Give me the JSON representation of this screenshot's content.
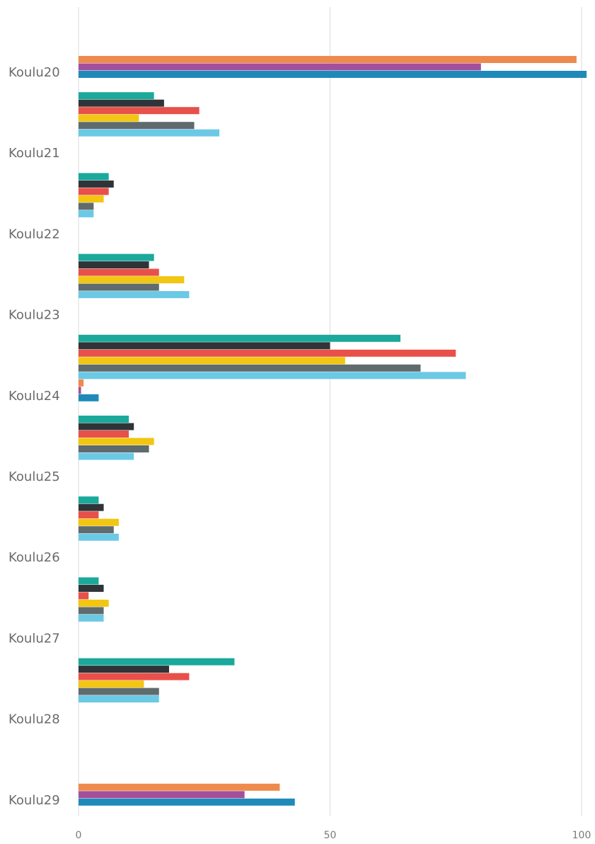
{
  "chart_data": {
    "type": "bar",
    "orientation": "horizontal",
    "xlim": [
      0,
      100
    ],
    "xticks": [
      0,
      50,
      100
    ],
    "grid": true,
    "title": "",
    "xlabel": "",
    "ylabel": "",
    "colors": [
      "#1aa99b",
      "#2e3438",
      "#e8504a",
      "#f2c611",
      "#5f6b6d",
      "#6cc9e5",
      "#ef8a4d",
      "#a3509c",
      "#1f8ab9"
    ],
    "categories": [
      "Koulu20",
      "Koulu21",
      "Koulu22",
      "Koulu23",
      "Koulu24",
      "Koulu25",
      "Koulu26",
      "Koulu27",
      "Koulu28",
      "Koulu29"
    ],
    "series": [
      {
        "values": [
          0,
          15,
          6,
          15,
          64,
          10,
          4,
          4,
          31,
          0
        ]
      },
      {
        "values": [
          0,
          17,
          7,
          14,
          50,
          11,
          5,
          5,
          18,
          0
        ]
      },
      {
        "values": [
          0,
          24,
          6,
          16,
          75,
          10,
          4,
          2,
          22,
          0
        ]
      },
      {
        "values": [
          0,
          12,
          5,
          21,
          53,
          15,
          8,
          6,
          13,
          0
        ]
      },
      {
        "values": [
          0,
          23,
          3,
          16,
          68,
          14,
          7,
          5,
          16,
          0
        ]
      },
      {
        "values": [
          0,
          28,
          3,
          22,
          77,
          11,
          8,
          5,
          16,
          0
        ]
      },
      {
        "values": [
          99,
          0,
          0,
          0,
          1,
          0,
          0,
          0,
          0,
          40
        ]
      },
      {
        "values": [
          80,
          0,
          0,
          0,
          0.5,
          0,
          0,
          0,
          0,
          33
        ]
      },
      {
        "values": [
          101,
          0,
          0,
          0,
          4,
          0,
          0,
          0,
          0,
          43
        ]
      }
    ]
  }
}
